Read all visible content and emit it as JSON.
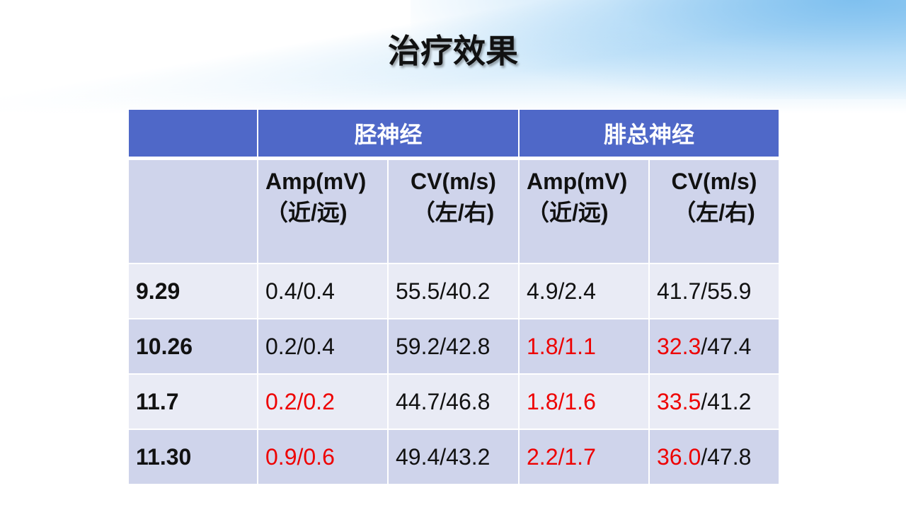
{
  "title": "治疗效果",
  "table": {
    "groups": [
      "胫神经",
      "腓总神经"
    ],
    "subheaders": [
      "Amp(mV)（近/远)",
      "CV(m/s)（左/右)",
      "Amp(mV)（近/远)",
      "CV(m/s)（左/右)"
    ],
    "rows": [
      {
        "date": "9.29",
        "cells": [
          [
            {
              "t": "0.4/0.4",
              "red": false
            }
          ],
          [
            {
              "t": "55.5/40.2",
              "red": false
            }
          ],
          [
            {
              "t": "4.9/2.4",
              "red": false
            }
          ],
          [
            {
              "t": "41.7/55.9",
              "red": false
            }
          ]
        ]
      },
      {
        "date": "10.26",
        "cells": [
          [
            {
              "t": "0.2/0.4",
              "red": false
            }
          ],
          [
            {
              "t": "59.2/42.8",
              "red": false
            }
          ],
          [
            {
              "t": "1.8/1.1",
              "red": true
            }
          ],
          [
            {
              "t": "32.3",
              "red": true
            },
            {
              "t": "/47.4",
              "red": false
            }
          ]
        ]
      },
      {
        "date": "11.7",
        "cells": [
          [
            {
              "t": "0.2/0.2",
              "red": true
            }
          ],
          [
            {
              "t": "44.7/46.8",
              "red": false
            }
          ],
          [
            {
              "t": "1.8/1.6",
              "red": true
            }
          ],
          [
            {
              "t": "33.5",
              "red": true
            },
            {
              "t": "/41.2",
              "red": false
            }
          ]
        ]
      },
      {
        "date": "11.30",
        "cells": [
          [
            {
              "t": "0.9/0.6",
              "red": true
            }
          ],
          [
            {
              "t": "49.4/43.2",
              "red": false
            }
          ],
          [
            {
              "t": "2.2/1.7",
              "red": true
            }
          ],
          [
            {
              "t": "36.0",
              "red": true
            },
            {
              "t": "/47.8",
              "red": false
            }
          ]
        ]
      }
    ]
  },
  "colors": {
    "header": "#4f68c8",
    "row_dark": "#cfd4eb",
    "row_light": "#e9ebf5",
    "highlight": "#ee0000"
  }
}
